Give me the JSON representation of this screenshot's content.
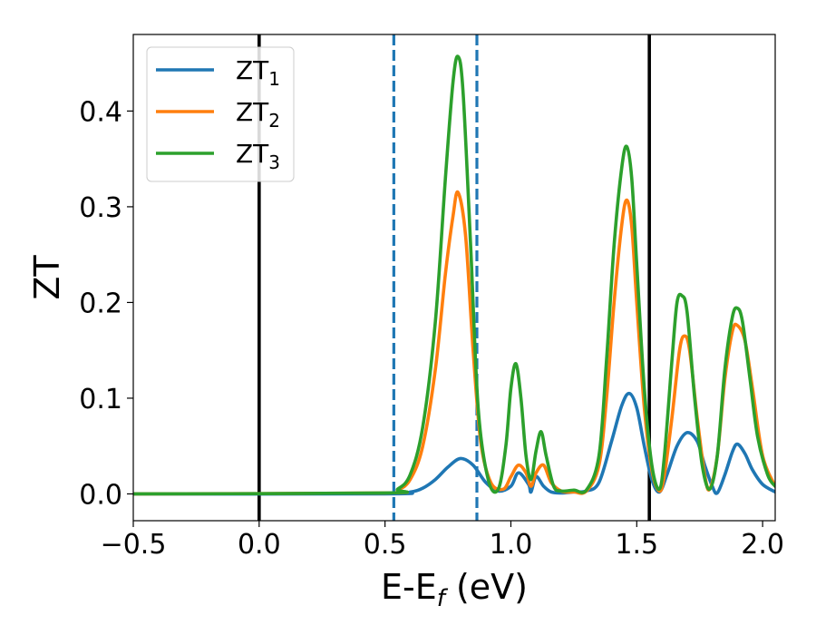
{
  "chart_data": {
    "type": "line",
    "xlabel_main": "E-E",
    "xlabel_sub": "f",
    "xlabel_unit": " (eV)",
    "ylabel": "ZT",
    "xlim": [
      -0.5,
      2.05
    ],
    "ylim": [
      -0.028,
      0.48
    ],
    "xticks": [
      -0.5,
      0.0,
      0.5,
      1.0,
      1.5,
      2.0
    ],
    "xtick_labels": [
      "−0.5",
      "0.0",
      "0.5",
      "1.0",
      "1.5",
      "2.0"
    ],
    "yticks": [
      0.0,
      0.1,
      0.2,
      0.3,
      0.4
    ],
    "ytick_labels": [
      "0.0",
      "0.1",
      "0.2",
      "0.3",
      "0.4"
    ],
    "legend_position": "top-left",
    "vlines": [
      {
        "x": 0.0,
        "color": "#000000",
        "style": "solid"
      },
      {
        "x": 1.55,
        "color": "#000000",
        "style": "solid"
      },
      {
        "x": 0.535,
        "color": "#1f77b4",
        "style": "dashed"
      },
      {
        "x": 0.865,
        "color": "#1f77b4",
        "style": "dashed"
      }
    ],
    "series": [
      {
        "name": "ZT",
        "name_sub": "1",
        "color": "#1f77b4",
        "x": [
          -0.5,
          0.5,
          0.6,
          0.65,
          0.7,
          0.75,
          0.8,
          0.85,
          0.9,
          0.95,
          1.0,
          1.03,
          1.07,
          1.08,
          1.1,
          1.13,
          1.16,
          1.2,
          1.25,
          1.3,
          1.35,
          1.4,
          1.44,
          1.47,
          1.5,
          1.53,
          1.56,
          1.59,
          1.62,
          1.66,
          1.7,
          1.74,
          1.77,
          1.8,
          1.82,
          1.85,
          1.88,
          1.9,
          1.93,
          1.96,
          2.0,
          2.05
        ],
        "y": [
          0.0,
          0.0,
          0.002,
          0.006,
          0.015,
          0.028,
          0.037,
          0.03,
          0.012,
          0.003,
          0.008,
          0.022,
          0.01,
          0.002,
          0.018,
          0.008,
          0.002,
          0.001,
          0.002,
          0.003,
          0.012,
          0.055,
          0.092,
          0.105,
          0.09,
          0.05,
          0.015,
          0.002,
          0.02,
          0.05,
          0.064,
          0.055,
          0.03,
          0.008,
          0.001,
          0.02,
          0.044,
          0.052,
          0.042,
          0.025,
          0.01,
          0.002
        ]
      },
      {
        "name": "ZT",
        "name_sub": "2",
        "color": "#ff7f0e",
        "x": [
          -0.5,
          0.5,
          0.55,
          0.6,
          0.65,
          0.7,
          0.74,
          0.77,
          0.79,
          0.82,
          0.85,
          0.88,
          0.92,
          0.97,
          1.0,
          1.03,
          1.06,
          1.08,
          1.1,
          1.13,
          1.16,
          1.2,
          1.25,
          1.3,
          1.35,
          1.38,
          1.41,
          1.44,
          1.46,
          1.48,
          1.5,
          1.53,
          1.56,
          1.59,
          1.61,
          1.64,
          1.67,
          1.69,
          1.71,
          1.74,
          1.77,
          1.79,
          1.82,
          1.85,
          1.88,
          1.9,
          1.93,
          1.96,
          2.0,
          2.05
        ],
        "y": [
          0.0,
          0.001,
          0.004,
          0.015,
          0.05,
          0.13,
          0.23,
          0.29,
          0.315,
          0.27,
          0.15,
          0.055,
          0.012,
          0.005,
          0.018,
          0.03,
          0.022,
          0.008,
          0.022,
          0.03,
          0.012,
          0.003,
          0.002,
          0.003,
          0.03,
          0.1,
          0.2,
          0.28,
          0.307,
          0.28,
          0.2,
          0.09,
          0.025,
          0.003,
          0.02,
          0.08,
          0.15,
          0.165,
          0.15,
          0.08,
          0.02,
          0.005,
          0.04,
          0.12,
          0.17,
          0.176,
          0.16,
          0.11,
          0.04,
          0.008
        ]
      },
      {
        "name": "ZT",
        "name_sub": "3",
        "color": "#2ca02c",
        "x": [
          -0.5,
          0.5,
          0.55,
          0.6,
          0.65,
          0.7,
          0.74,
          0.77,
          0.79,
          0.81,
          0.84,
          0.87,
          0.91,
          0.95,
          0.98,
          1.0,
          1.02,
          1.04,
          1.06,
          1.08,
          1.1,
          1.12,
          1.14,
          1.17,
          1.2,
          1.25,
          1.3,
          1.35,
          1.38,
          1.41,
          1.44,
          1.46,
          1.48,
          1.5,
          1.53,
          1.56,
          1.59,
          1.61,
          1.64,
          1.66,
          1.68,
          1.7,
          1.73,
          1.76,
          1.79,
          1.82,
          1.85,
          1.88,
          1.9,
          1.92,
          1.95,
          1.98,
          2.02,
          2.05
        ],
        "y": [
          0.0,
          0.001,
          0.005,
          0.02,
          0.07,
          0.18,
          0.33,
          0.43,
          0.457,
          0.42,
          0.26,
          0.09,
          0.015,
          0.005,
          0.05,
          0.11,
          0.136,
          0.1,
          0.04,
          0.015,
          0.045,
          0.065,
          0.04,
          0.008,
          0.003,
          0.004,
          0.004,
          0.04,
          0.14,
          0.26,
          0.34,
          0.363,
          0.33,
          0.24,
          0.11,
          0.03,
          0.005,
          0.04,
          0.14,
          0.2,
          0.207,
          0.19,
          0.1,
          0.03,
          0.005,
          0.04,
          0.13,
          0.185,
          0.194,
          0.18,
          0.12,
          0.06,
          0.02,
          0.008
        ]
      }
    ]
  }
}
